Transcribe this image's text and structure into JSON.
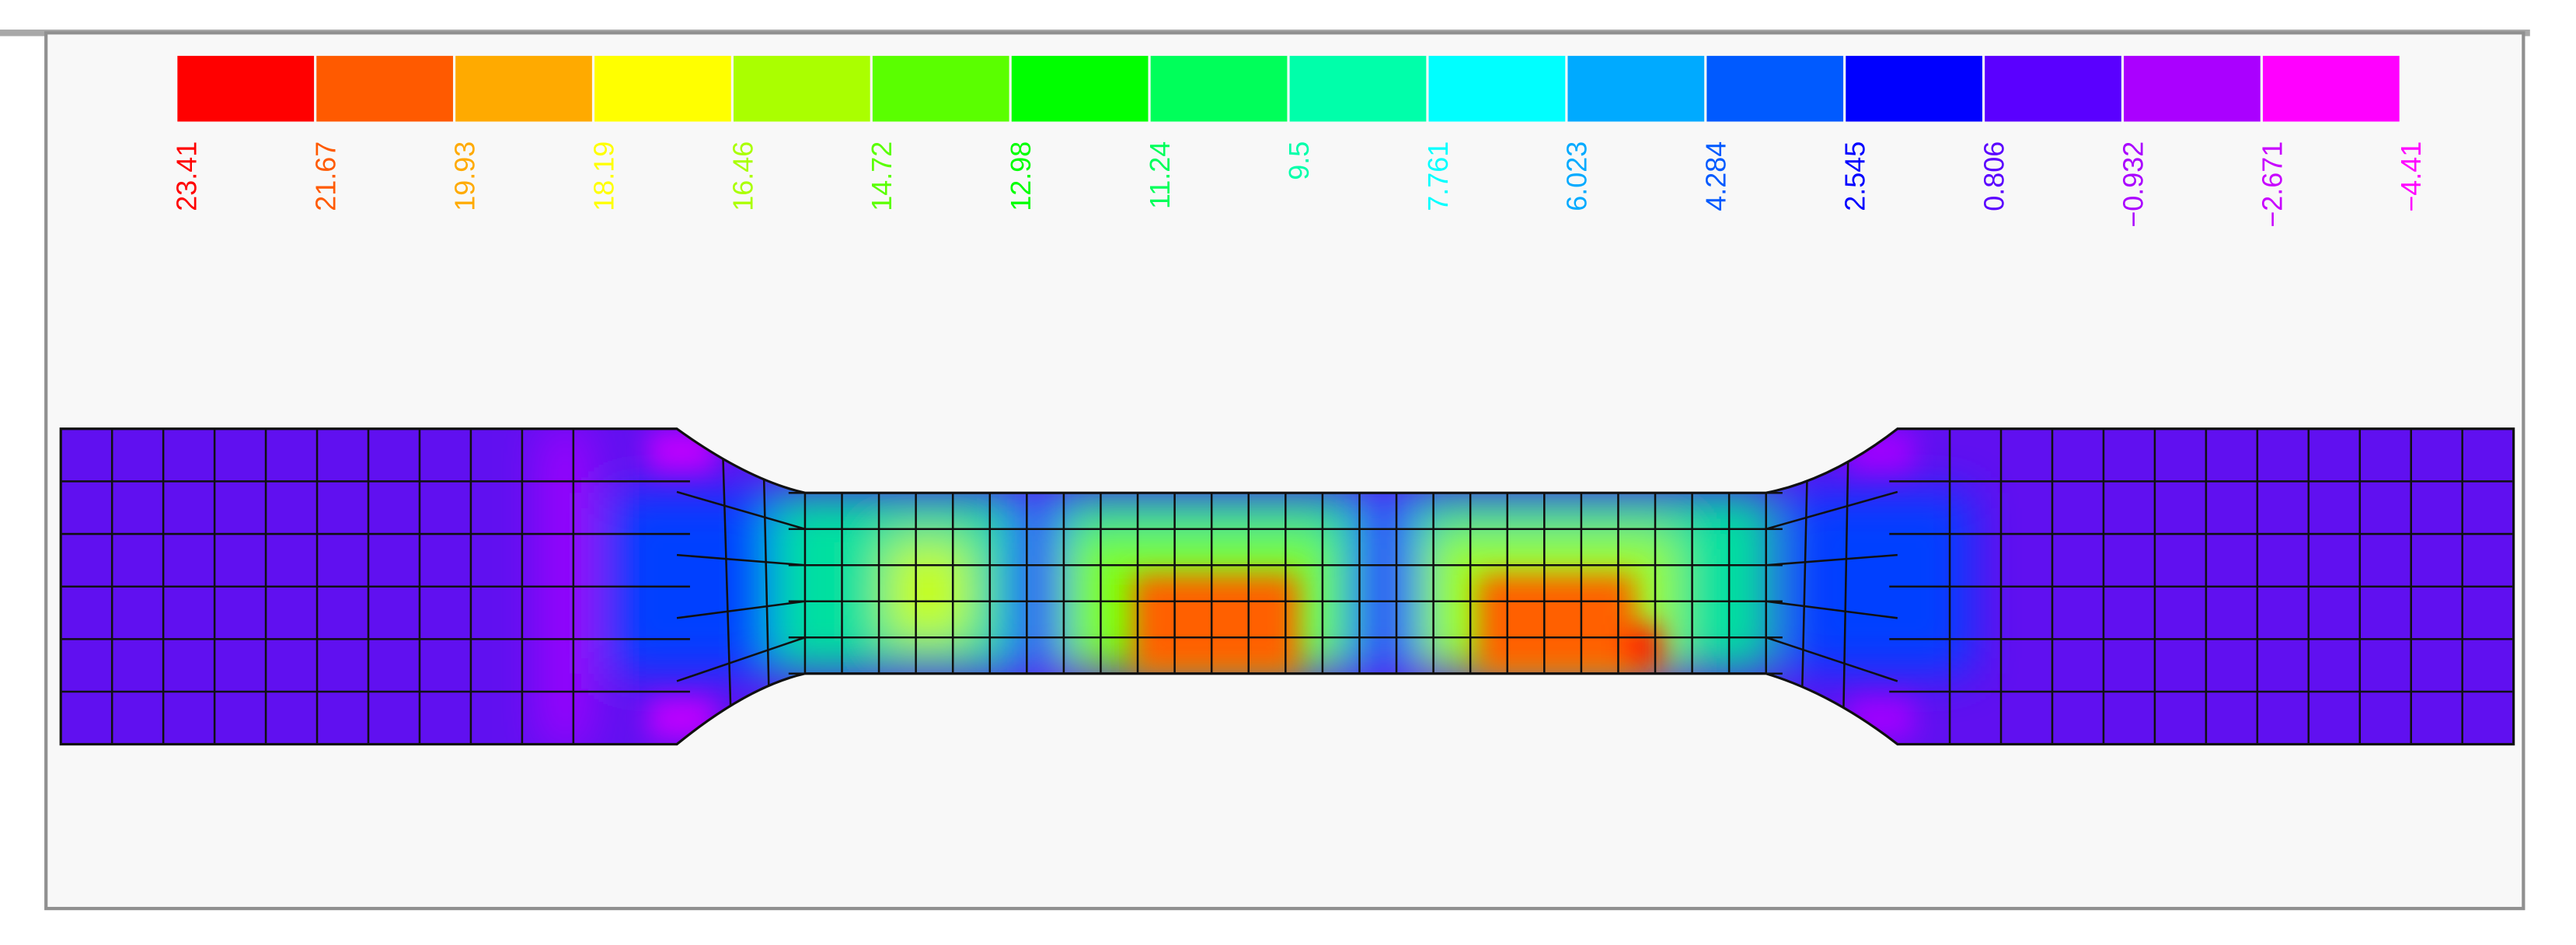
{
  "colorbar": {
    "colors": [
      "#ff0000",
      "#ff5a00",
      "#ffaa00",
      "#ffff00",
      "#aaff00",
      "#5aff00",
      "#00ff00",
      "#00ff5a",
      "#00ffaa",
      "#00ffff",
      "#00aaff",
      "#005aff",
      "#0000ff",
      "#5a00ff",
      "#aa00ff",
      "#ff00ff"
    ],
    "labels": [
      "23.41",
      "21.67",
      "19.93",
      "18.19",
      "16.46",
      "14.72",
      "12.98",
      "11.24",
      "9.5",
      "7.761",
      "6.023",
      "4.284",
      "2.545",
      "0.806",
      "−0.932",
      "−2.671",
      "−4.41"
    ],
    "label_colors": [
      "#ff0000",
      "#ff5a00",
      "#ffaa00",
      "#ffff00",
      "#aaff00",
      "#5aff00",
      "#00ff00",
      "#00ff5a",
      "#00ffaa",
      "#00ffff",
      "#00aaff",
      "#005aff",
      "#0000ff",
      "#5a00ff",
      "#aa00ff",
      "#c800ff",
      "#ff00ff"
    ]
  }
}
